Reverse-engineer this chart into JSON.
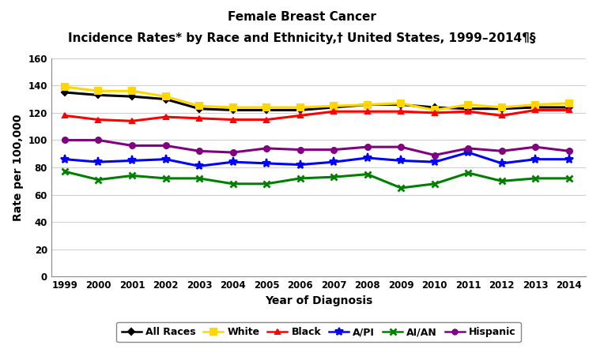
{
  "title_line1": "Female Breast Cancer",
  "title_line2": "Incidence Rates* by Race and Ethnicity,† United States, 1999–2014¶§",
  "xlabel": "Year of Diagnosis",
  "ylabel": "Rate per 100,000",
  "years": [
    1999,
    2000,
    2001,
    2002,
    2003,
    2004,
    2005,
    2006,
    2007,
    2008,
    2009,
    2010,
    2011,
    2012,
    2013,
    2014
  ],
  "ylim": [
    0,
    160
  ],
  "yticks": [
    0,
    20,
    40,
    60,
    80,
    100,
    120,
    140,
    160
  ],
  "series": {
    "All Races": {
      "color": "#000000",
      "marker": "D",
      "markersize": 4,
      "linewidth": 2.2,
      "values": [
        135,
        133,
        132,
        130,
        123,
        122,
        122,
        122,
        124,
        126,
        126,
        124,
        123,
        123,
        124,
        124
      ]
    },
    "White": {
      "color": "#FFD700",
      "marker": "s",
      "markersize": 6,
      "linewidth": 2.2,
      "values": [
        139,
        136,
        136,
        132,
        125,
        124,
        124,
        124,
        125,
        126,
        127,
        122,
        126,
        124,
        126,
        127
      ]
    },
    "Black": {
      "color": "#FF0000",
      "marker": "^",
      "markersize": 5,
      "linewidth": 2.2,
      "values": [
        118,
        115,
        114,
        117,
        116,
        115,
        115,
        118,
        121,
        121,
        121,
        120,
        121,
        118,
        122,
        122
      ]
    },
    "A/PI": {
      "color": "#0000FF",
      "marker": "*",
      "markersize": 8,
      "linewidth": 2.2,
      "values": [
        86,
        84,
        85,
        86,
        81,
        84,
        83,
        82,
        84,
        87,
        85,
        84,
        91,
        83,
        86,
        86
      ]
    },
    "AI/AN": {
      "color": "#008000",
      "marker": "x",
      "markersize": 6,
      "linewidth": 2.2,
      "markeredgewidth": 2.0,
      "values": [
        77,
        71,
        74,
        72,
        72,
        68,
        68,
        72,
        73,
        75,
        65,
        68,
        76,
        70,
        72,
        72
      ]
    },
    "Hispanic": {
      "color": "#800080",
      "marker": "o",
      "markersize": 5,
      "linewidth": 2.2,
      "values": [
        100,
        100,
        96,
        96,
        92,
        91,
        94,
        93,
        93,
        95,
        95,
        89,
        94,
        92,
        95,
        92
      ]
    }
  },
  "background_color": "#FFFFFF",
  "grid_color": "#D0D0D0",
  "figsize": [
    7.64,
    4.61
  ],
  "dpi": 100
}
